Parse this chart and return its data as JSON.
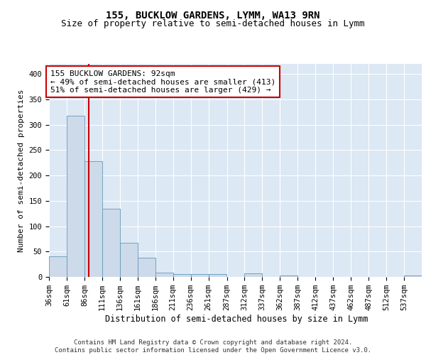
{
  "title1": "155, BUCKLOW GARDENS, LYMM, WA13 9RN",
  "title2": "Size of property relative to semi-detached houses in Lymm",
  "xlabel": "Distribution of semi-detached houses by size in Lymm",
  "ylabel": "Number of semi-detached properties",
  "bin_edges": [
    36,
    61,
    86,
    111,
    136,
    161,
    186,
    211,
    236,
    261,
    287,
    312,
    337,
    362,
    387,
    412,
    437,
    462,
    487,
    512,
    537,
    562
  ],
  "bar_heights": [
    40,
    318,
    228,
    135,
    67,
    38,
    8,
    5,
    5,
    5,
    0,
    7,
    0,
    3,
    0,
    0,
    0,
    0,
    0,
    0,
    3
  ],
  "bar_color": "#ccdaea",
  "bar_edge_color": "#6699bb",
  "property_size": 92,
  "red_line_color": "#cc0000",
  "annotation_text": "155 BUCKLOW GARDENS: 92sqm\n← 49% of semi-detached houses are smaller (413)\n51% of semi-detached houses are larger (429) →",
  "annotation_box_color": "white",
  "annotation_box_edge": "#cc0000",
  "ylim": [
    0,
    420
  ],
  "yticks": [
    0,
    50,
    100,
    150,
    200,
    250,
    300,
    350,
    400
  ],
  "background_color": "#dce8f4",
  "grid_color": "#ffffff",
  "footer_text": "Contains HM Land Registry data © Crown copyright and database right 2024.\nContains public sector information licensed under the Open Government Licence v3.0.",
  "title1_fontsize": 10,
  "title2_fontsize": 9,
  "xlabel_fontsize": 8.5,
  "ylabel_fontsize": 8,
  "tick_fontsize": 7.5,
  "annotation_fontsize": 8,
  "footer_fontsize": 6.5,
  "xtick_labels": [
    "36sqm",
    "61sqm",
    "86sqm",
    "111sqm",
    "136sqm",
    "161sqm",
    "186sqm",
    "211sqm",
    "236sqm",
    "261sqm",
    "287sqm",
    "312sqm",
    "337sqm",
    "362sqm",
    "387sqm",
    "412sqm",
    "437sqm",
    "462sqm",
    "487sqm",
    "512sqm",
    "537sqm"
  ]
}
